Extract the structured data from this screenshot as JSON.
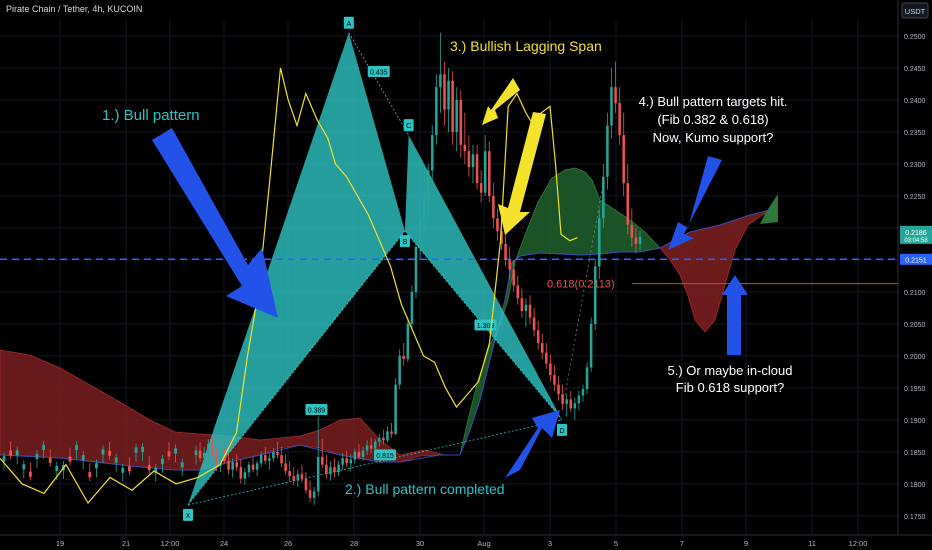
{
  "header": {
    "symbol_title": "Pirate Chain / Tether, 4h, KUCOIN",
    "currency": "USDT"
  },
  "colors": {
    "background": "#000000",
    "bull_candle": "#26a69a",
    "bear_candle": "#ef5350",
    "lagging_span": "#f3e02b",
    "harmonic_fill": "#2ec4c4",
    "cloud_bull": "#1f5c2a",
    "cloud_bear": "#7a1e1e",
    "dashed_level": "#2962ff",
    "fib_line": "#c0532b",
    "arrow_blue": "#2352e8",
    "arrow_yellow": "#f5e22a"
  },
  "chart_data": {
    "type": "candlestick",
    "title": "",
    "ylim": [
      0.172,
      0.2525
    ],
    "y_ticks": [
      "0.2500",
      "0.2450",
      "0.2400",
      "0.2350",
      "0.2300",
      "0.2250",
      "0.2200",
      "0.2150",
      "0.2100",
      "0.2050",
      "0.2000",
      "0.1950",
      "0.1900",
      "0.1850",
      "0.1800",
      "0.1750"
    ],
    "x_ticks": [
      "19",
      "21",
      "12:00",
      "24",
      "26",
      "28",
      "30",
      "Aug",
      "3",
      "5",
      "7",
      "9",
      "11",
      "12:00"
    ],
    "price_labels": [
      {
        "label": "0.2186",
        "sub": "03:04:58",
        "value": 0.2186,
        "color": "#26a69a"
      },
      {
        "label": "0.2151",
        "value": 0.2151,
        "color": "#2962ff"
      }
    ],
    "levels": [
      {
        "name": "dashed-support",
        "value": 0.2151
      },
      {
        "name": "fib-0.618",
        "value": 0.2113,
        "label": "0.618(0.2113)"
      }
    ],
    "harmonic_points": [
      {
        "label": "X",
        "t": 0.0,
        "price": 0.1767
      },
      {
        "label": "A",
        "t": 0.43,
        "price": 0.2505
      },
      {
        "label": "B",
        "t": 0.58,
        "price": 0.2195
      },
      {
        "label": "C",
        "t": 0.59,
        "price": 0.2345
      },
      {
        "label": "D",
        "t": 1.0,
        "price": 0.19
      }
    ],
    "ratio_labels": [
      "0.435",
      "0.389",
      "0.815",
      "1.308"
    ],
    "annotations": [
      "1.) Bull pattern",
      "2.) Bull pattern completed",
      "3.) Bullish Lagging Span",
      "4.) Bull pattern targets hit.",
      "(Fib 0.382 & 0.618)",
      "Now, Kumo support?",
      "5.) Or maybe in-cloud",
      "Fib 0.618 support?"
    ],
    "candles": [
      [
        0.1845,
        0.186,
        0.183,
        0.1852
      ],
      [
        0.1852,
        0.1865,
        0.1835,
        0.184
      ],
      [
        0.184,
        0.1858,
        0.1825,
        0.1848
      ],
      [
        0.1848,
        0.187,
        0.184,
        0.1862
      ],
      [
        0.1862,
        0.1872,
        0.1842,
        0.1846
      ],
      [
        0.1846,
        0.1855,
        0.182,
        0.1828
      ],
      [
        0.1828,
        0.185,
        0.1818,
        0.1842
      ],
      [
        0.1842,
        0.1855,
        0.1832,
        0.1836
      ],
      [
        0.1836,
        0.1848,
        0.1815,
        0.1822
      ],
      [
        0.1822,
        0.184,
        0.181,
        0.1834
      ],
      [
        0.1834,
        0.1846,
        0.182,
        0.1826
      ],
      [
        0.1826,
        0.1838,
        0.18,
        0.1808
      ],
      [
        0.1808,
        0.1825,
        0.1798,
        0.1818
      ],
      [
        0.1818,
        0.1835,
        0.181,
        0.183
      ],
      [
        0.183,
        0.1842,
        0.1818,
        0.1822
      ],
      [
        0.1822,
        0.1836,
        0.1812,
        0.1832
      ],
      [
        0.1832,
        0.185,
        0.1826,
        0.1845
      ],
      [
        0.1845,
        0.1858,
        0.183,
        0.1836
      ],
      [
        0.1836,
        0.1848,
        0.1822,
        0.184
      ],
      [
        0.184,
        0.1856,
        0.1834,
        0.185
      ],
      [
        0.185,
        0.1866,
        0.184,
        0.1845
      ],
      [
        0.1845,
        0.1858,
        0.1826,
        0.1832
      ],
      [
        0.1832,
        0.1846,
        0.1815,
        0.182
      ],
      [
        0.182,
        0.1835,
        0.1805,
        0.1812
      ],
      [
        0.1812,
        0.1826,
        0.1798,
        0.1805
      ],
      [
        0.1805,
        0.1822,
        0.1795,
        0.1815
      ],
      [
        0.1815,
        0.183,
        0.1802,
        0.1808
      ],
      [
        0.1808,
        0.1818,
        0.1785,
        0.179
      ],
      [
        0.179,
        0.1805,
        0.1772,
        0.1778
      ],
      [
        0.1778,
        0.1795,
        0.1767,
        0.1788
      ],
      [
        0.1788,
        0.1905,
        0.178,
        0.1842
      ],
      [
        0.1842,
        0.187,
        0.1825,
        0.183
      ],
      [
        0.183,
        0.1845,
        0.1808,
        0.1815
      ],
      [
        0.1815,
        0.1835,
        0.1805,
        0.1826
      ],
      [
        0.1826,
        0.184,
        0.181,
        0.1818
      ],
      [
        0.1818,
        0.1836,
        0.1812,
        0.183
      ],
      [
        0.183,
        0.1848,
        0.1822,
        0.184
      ],
      [
        0.184,
        0.1852,
        0.1826,
        0.1832
      ],
      [
        0.1832,
        0.1846,
        0.182,
        0.1838
      ],
      [
        0.1838,
        0.1855,
        0.1832,
        0.185
      ],
      [
        0.185,
        0.1862,
        0.1838,
        0.1842
      ],
      [
        0.1842,
        0.1858,
        0.1836,
        0.1852
      ],
      [
        0.1852,
        0.1868,
        0.1845,
        0.186
      ],
      [
        0.186,
        0.1872,
        0.1848,
        0.1855
      ],
      [
        0.1855,
        0.187,
        0.185,
        0.1866
      ],
      [
        0.1866,
        0.1878,
        0.1858,
        0.1872
      ],
      [
        0.1872,
        0.1885,
        0.1862,
        0.1868
      ],
      [
        0.1868,
        0.189,
        0.1864,
        0.1882
      ],
      [
        0.1882,
        0.1895,
        0.1872,
        0.1878
      ],
      [
        0.1878,
        0.1965,
        0.1876,
        0.1955
      ],
      [
        0.1955,
        0.201,
        0.1948,
        0.2
      ],
      [
        0.2,
        0.202,
        0.1985,
        0.1995
      ],
      [
        0.1995,
        0.206,
        0.199,
        0.205
      ],
      [
        0.205,
        0.211,
        0.204,
        0.21
      ],
      [
        0.21,
        0.218,
        0.209,
        0.217
      ],
      [
        0.217,
        0.223,
        0.215,
        0.2215
      ],
      [
        0.2215,
        0.226,
        0.219,
        0.2245
      ],
      [
        0.2245,
        0.23,
        0.222,
        0.229
      ],
      [
        0.229,
        0.236,
        0.227,
        0.2345
      ],
      [
        0.2345,
        0.244,
        0.233,
        0.242
      ],
      [
        0.242,
        0.2505,
        0.238,
        0.244
      ],
      [
        0.244,
        0.246,
        0.236,
        0.2385
      ],
      [
        0.2385,
        0.245,
        0.235,
        0.243
      ],
      [
        0.243,
        0.2445,
        0.233,
        0.235
      ],
      [
        0.235,
        0.242,
        0.232,
        0.24
      ],
      [
        0.24,
        0.2415,
        0.231,
        0.233
      ],
      [
        0.233,
        0.238,
        0.23,
        0.232
      ],
      [
        0.232,
        0.2345,
        0.228,
        0.2295
      ],
      [
        0.2295,
        0.233,
        0.227,
        0.2315
      ],
      [
        0.2315,
        0.233,
        0.226,
        0.227
      ],
      [
        0.227,
        0.229,
        0.224,
        0.2255
      ],
      [
        0.2255,
        0.2345,
        0.225,
        0.232
      ],
      [
        0.232,
        0.2335,
        0.224,
        0.225
      ],
      [
        0.225,
        0.227,
        0.22,
        0.2215
      ],
      [
        0.2215,
        0.223,
        0.218,
        0.2195
      ],
      [
        0.2195,
        0.2215,
        0.2165,
        0.2175
      ],
      [
        0.2175,
        0.219,
        0.214,
        0.215
      ],
      [
        0.215,
        0.217,
        0.212,
        0.2135
      ],
      [
        0.2135,
        0.215,
        0.21,
        0.211
      ],
      [
        0.211,
        0.2125,
        0.208,
        0.209
      ],
      [
        0.209,
        0.2105,
        0.206,
        0.207
      ],
      [
        0.207,
        0.209,
        0.2045,
        0.208
      ],
      [
        0.208,
        0.2095,
        0.205,
        0.206
      ],
      [
        0.206,
        0.2075,
        0.203,
        0.204
      ],
      [
        0.204,
        0.2055,
        0.201,
        0.202
      ],
      [
        0.202,
        0.2035,
        0.1995,
        0.2005
      ],
      [
        0.2005,
        0.202,
        0.198,
        0.1988
      ],
      [
        0.1988,
        0.2002,
        0.196,
        0.197
      ],
      [
        0.197,
        0.1985,
        0.1945,
        0.1955
      ],
      [
        0.1955,
        0.1968,
        0.193,
        0.194
      ],
      [
        0.194,
        0.1955,
        0.1915,
        0.1925
      ],
      [
        0.1925,
        0.194,
        0.1905,
        0.1932
      ],
      [
        0.1932,
        0.1945,
        0.1912,
        0.1918
      ],
      [
        0.1918,
        0.1935,
        0.19,
        0.1926
      ],
      [
        0.1926,
        0.1945,
        0.1915,
        0.1938
      ],
      [
        0.1938,
        0.1955,
        0.1928,
        0.1948
      ],
      [
        0.1948,
        0.199,
        0.194,
        0.1982
      ],
      [
        0.1982,
        0.206,
        0.1975,
        0.205
      ],
      [
        0.205,
        0.215,
        0.204,
        0.214
      ],
      [
        0.214,
        0.223,
        0.212,
        0.2215
      ],
      [
        0.2215,
        0.23,
        0.22,
        0.228
      ],
      [
        0.228,
        0.238,
        0.226,
        0.236
      ],
      [
        0.236,
        0.245,
        0.234,
        0.242
      ],
      [
        0.242,
        0.246,
        0.238,
        0.2395
      ],
      [
        0.2395,
        0.242,
        0.233,
        0.2345
      ],
      [
        0.2345,
        0.238,
        0.225,
        0.227
      ],
      [
        0.227,
        0.23,
        0.219,
        0.2205
      ],
      [
        0.2205,
        0.223,
        0.217,
        0.2185
      ],
      [
        0.2185,
        0.22,
        0.216,
        0.2175
      ],
      [
        0.2175,
        0.2195,
        0.2165,
        0.2186
      ]
    ],
    "lagging_span": [
      [
        0.0,
        0.184
      ],
      [
        0.02,
        0.18
      ],
      [
        0.04,
        0.1785
      ],
      [
        0.06,
        0.183
      ],
      [
        0.08,
        0.177
      ],
      [
        0.1,
        0.181
      ],
      [
        0.12,
        0.179
      ],
      [
        0.14,
        0.182
      ],
      [
        0.16,
        0.18
      ],
      [
        0.18,
        0.181
      ],
      [
        0.2,
        0.183
      ],
      [
        0.215,
        0.188
      ],
      [
        0.225,
        0.2
      ],
      [
        0.235,
        0.21
      ],
      [
        0.245,
        0.227
      ],
      [
        0.255,
        0.245
      ],
      [
        0.262,
        0.24
      ],
      [
        0.27,
        0.236
      ],
      [
        0.278,
        0.241
      ],
      [
        0.288,
        0.237
      ],
      [
        0.298,
        0.234
      ],
      [
        0.305,
        0.23
      ],
      [
        0.315,
        0.228
      ],
      [
        0.325,
        0.225
      ],
      [
        0.335,
        0.222
      ],
      [
        0.345,
        0.218
      ],
      [
        0.355,
        0.214
      ],
      [
        0.365,
        0.208
      ],
      [
        0.375,
        0.204
      ],
      [
        0.385,
        0.2
      ],
      [
        0.395,
        0.199
      ],
      [
        0.405,
        0.195
      ],
      [
        0.415,
        0.192
      ],
      [
        0.425,
        0.194
      ],
      [
        0.435,
        0.196
      ],
      [
        0.445,
        0.202
      ],
      [
        0.455,
        0.218
      ],
      [
        0.462,
        0.239
      ],
      [
        0.47,
        0.241
      ],
      [
        0.478,
        0.238
      ],
      [
        0.485,
        0.236
      ],
      [
        0.492,
        0.238
      ],
      [
        0.5,
        0.239
      ],
      [
        0.505,
        0.23
      ],
      [
        0.51,
        0.219
      ],
      [
        0.518,
        0.218
      ],
      [
        0.525,
        0.2185
      ]
    ]
  }
}
